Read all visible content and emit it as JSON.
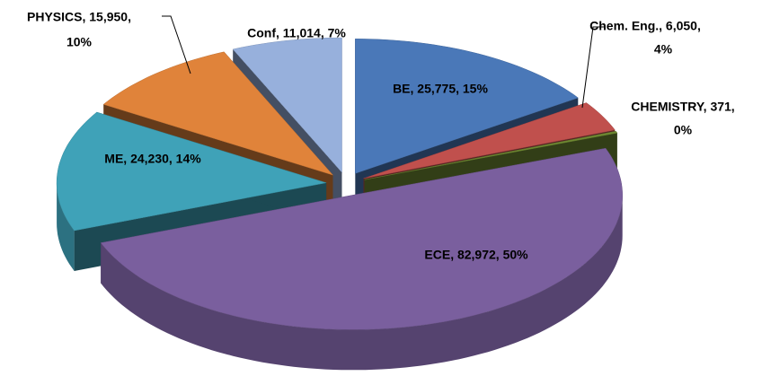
{
  "chart_data": {
    "type": "pie3d",
    "categories": [
      "BE",
      "Chem. Eng.",
      "CHEMISTRY",
      "ECE",
      "ME",
      "PHYSICS",
      "Conf"
    ],
    "values": [
      25775,
      6050,
      371,
      82972,
      24230,
      15950,
      11014
    ],
    "data_labels": [
      [
        "BE, 25,775, 15%"
      ],
      [
        "Chem. Eng., 6,050,",
        "4%"
      ],
      [
        "CHEMISTRY, 371,",
        "0%"
      ],
      [
        "ECE, 82,972, 50%"
      ],
      [
        "ME, 24,230, 14%"
      ],
      [
        "PHYSICS, 15,950,",
        "10%"
      ],
      [
        "Conf, 11,014, 7%"
      ]
    ],
    "colors": [
      "#4a78b8",
      "#c0504d",
      "#6f8a32",
      "#7a5f9e",
      "#3fa2b8",
      "#e0833a",
      "#97b0dc"
    ]
  }
}
